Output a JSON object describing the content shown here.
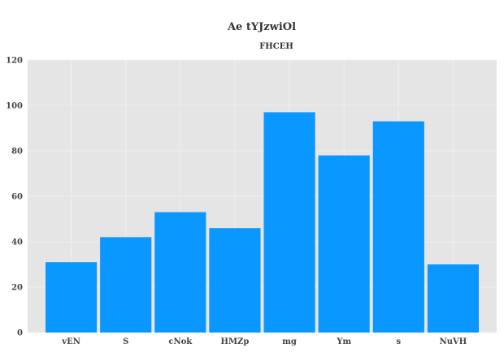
{
  "chart_data": {
    "type": "bar",
    "title": "Ae tYJzwiOl",
    "subtitle": "FHCEH",
    "categories": [
      "vEN",
      "S",
      "cNok",
      "HMZp",
      "mg",
      "Ym",
      "s",
      "NuVH"
    ],
    "series": [
      {
        "values": [
          31,
          42,
          53,
          46,
          97,
          78,
          93,
          30
        ]
      }
    ],
    "ylim": [
      0,
      120
    ],
    "yticks": [
      0,
      20,
      40,
      60,
      80,
      100,
      120
    ],
    "grid": true,
    "legend": "none",
    "colors": {
      "bar": "#0a97ff",
      "plot_background": "#e5e5e5",
      "grid": "#f0f0f0"
    }
  }
}
